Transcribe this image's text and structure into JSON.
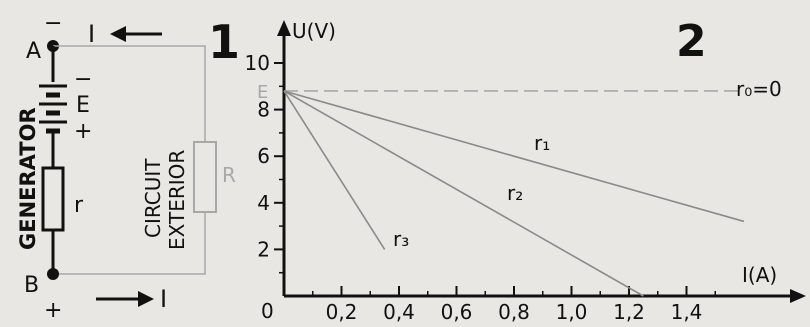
{
  "panel_labels": {
    "left": "1",
    "right": "2"
  },
  "circuit": {
    "node_a": "A",
    "node_b": "B",
    "current_top": "I",
    "current_bottom": "I",
    "minus_top": "−",
    "battery_minus": "−",
    "battery_plus": "+",
    "plus_bottom": "+",
    "emf_label": "E",
    "internal_resistance": "r",
    "load_resistance": "R",
    "generator_label": "GENERATOR",
    "circuit_line1": "CIRCUIT",
    "circuit_line2": "EXTERIOR"
  },
  "chart_data": {
    "type": "line",
    "ylabel": "U(V)",
    "xlabel": "I(A)",
    "xlim": [
      0,
      1.6
    ],
    "ylim": [
      0,
      10
    ],
    "x_ticks": [
      "0,2",
      "0,4",
      "0,6",
      "0,8",
      "1,0",
      "1,2",
      "1,4"
    ],
    "y_ticks": [
      "2",
      "4",
      "6",
      "8",
      "10"
    ],
    "origin_label": "0",
    "emf_axis_label": "E",
    "series": [
      {
        "name": "r₀=0",
        "x": [
          0,
          1.6
        ],
        "y": [
          8.8,
          8.8
        ],
        "style": "dashed"
      },
      {
        "name": "r₁",
        "x": [
          0,
          1.6
        ],
        "y": [
          8.8,
          3.2
        ],
        "style": "solid"
      },
      {
        "name": "r₂",
        "x": [
          0,
          1.25
        ],
        "y": [
          8.8,
          0
        ],
        "style": "solid"
      },
      {
        "name": "r₃",
        "x": [
          0,
          0.35
        ],
        "y": [
          8.8,
          2.0
        ],
        "style": "solid"
      }
    ],
    "grid": false,
    "colors": {
      "axis": "#111111",
      "lines": "#8a8a8a",
      "faint": "#a8a8a8"
    }
  }
}
